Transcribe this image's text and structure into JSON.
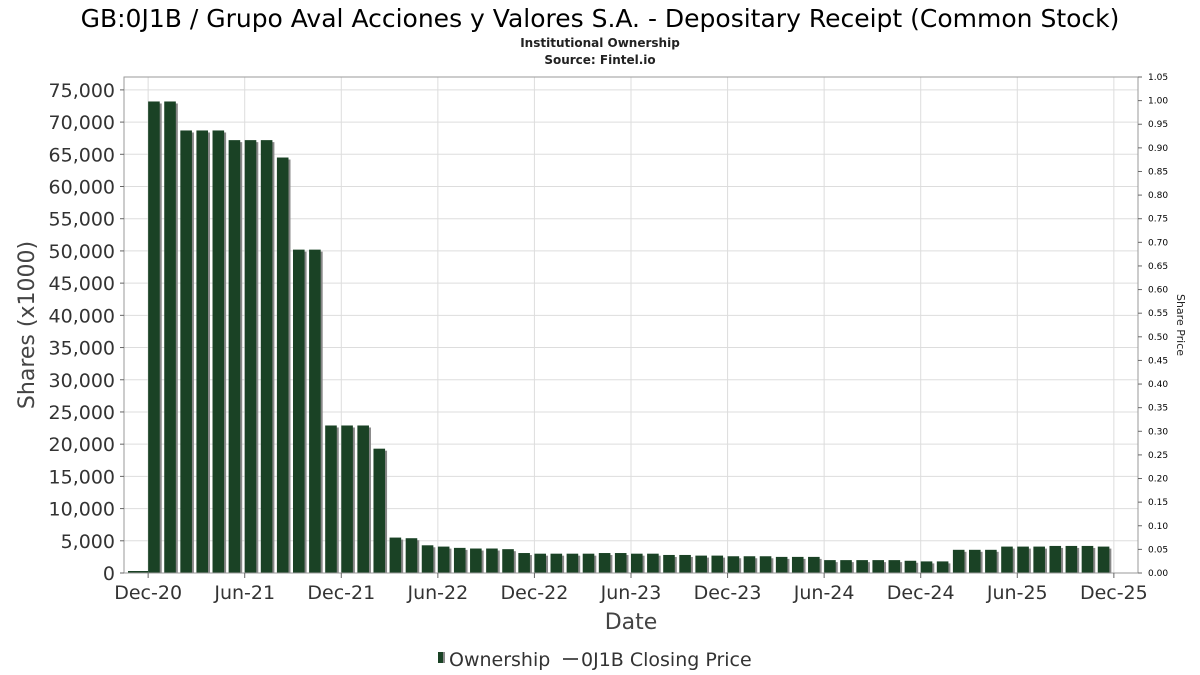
{
  "chart_data": {
    "type": "bar",
    "title": "GB:0J1B / Grupo Aval Acciones y Valores S.A. - Depositary Receipt (Common Stock)",
    "subtitle": "Institutional Ownership",
    "source": "Source: Fintel.io",
    "xlabel": "Date",
    "ylabel": "Shares (x1000)",
    "y2label": "Share Price",
    "ylim": [
      0,
      77000
    ],
    "y2lim": [
      0,
      1.05
    ],
    "yticks": [
      "0",
      "5,000",
      "10,000",
      "15,000",
      "20,000",
      "25,000",
      "30,000",
      "35,000",
      "40,000",
      "45,000",
      "50,000",
      "55,000",
      "60,000",
      "65,000",
      "70,000",
      "75,000"
    ],
    "y2ticks": [
      "0.00",
      "0.05",
      "0.10",
      "0.15",
      "0.20",
      "0.25",
      "0.30",
      "0.35",
      "0.40",
      "0.45",
      "0.50",
      "0.55",
      "0.60",
      "0.65",
      "0.70",
      "0.75",
      "0.80",
      "0.85",
      "0.90",
      "0.95",
      "1.00",
      "1.05"
    ],
    "xticks": [
      "Dec-20",
      "Jun-21",
      "Dec-21",
      "Jun-22",
      "Dec-22",
      "Jun-23",
      "Dec-23",
      "Jun-24",
      "Dec-24",
      "Jun-25",
      "Dec-25"
    ],
    "xrange_months": [
      -1.5,
      61.5
    ],
    "bar_start_month": 0,
    "bar_color": "#1a4225",
    "shadow_color": "#888888",
    "grid": true,
    "legend_position": "bottom-center",
    "series": [
      {
        "name": "Ownership",
        "values": [
          73200,
          73200,
          68700,
          68700,
          68700,
          67200,
          67200,
          67200,
          64500,
          50200,
          50200,
          22900,
          22900,
          22900,
          19300,
          5500,
          5400,
          4300,
          4100,
          3900,
          3800,
          3800,
          3700,
          3100,
          3000,
          3000,
          3000,
          3000,
          3100,
          3100,
          3000,
          3000,
          2800,
          2800,
          2700,
          2700,
          2600,
          2600,
          2600,
          2500,
          2500,
          2500,
          2000,
          2000,
          2000,
          2000,
          2000,
          1900,
          1800,
          1800,
          3600,
          3600,
          3600,
          4100,
          4100,
          4100,
          4200,
          4200,
          4200,
          4100
        ]
      },
      {
        "name": "0J1B Closing Price",
        "values": []
      }
    ]
  }
}
